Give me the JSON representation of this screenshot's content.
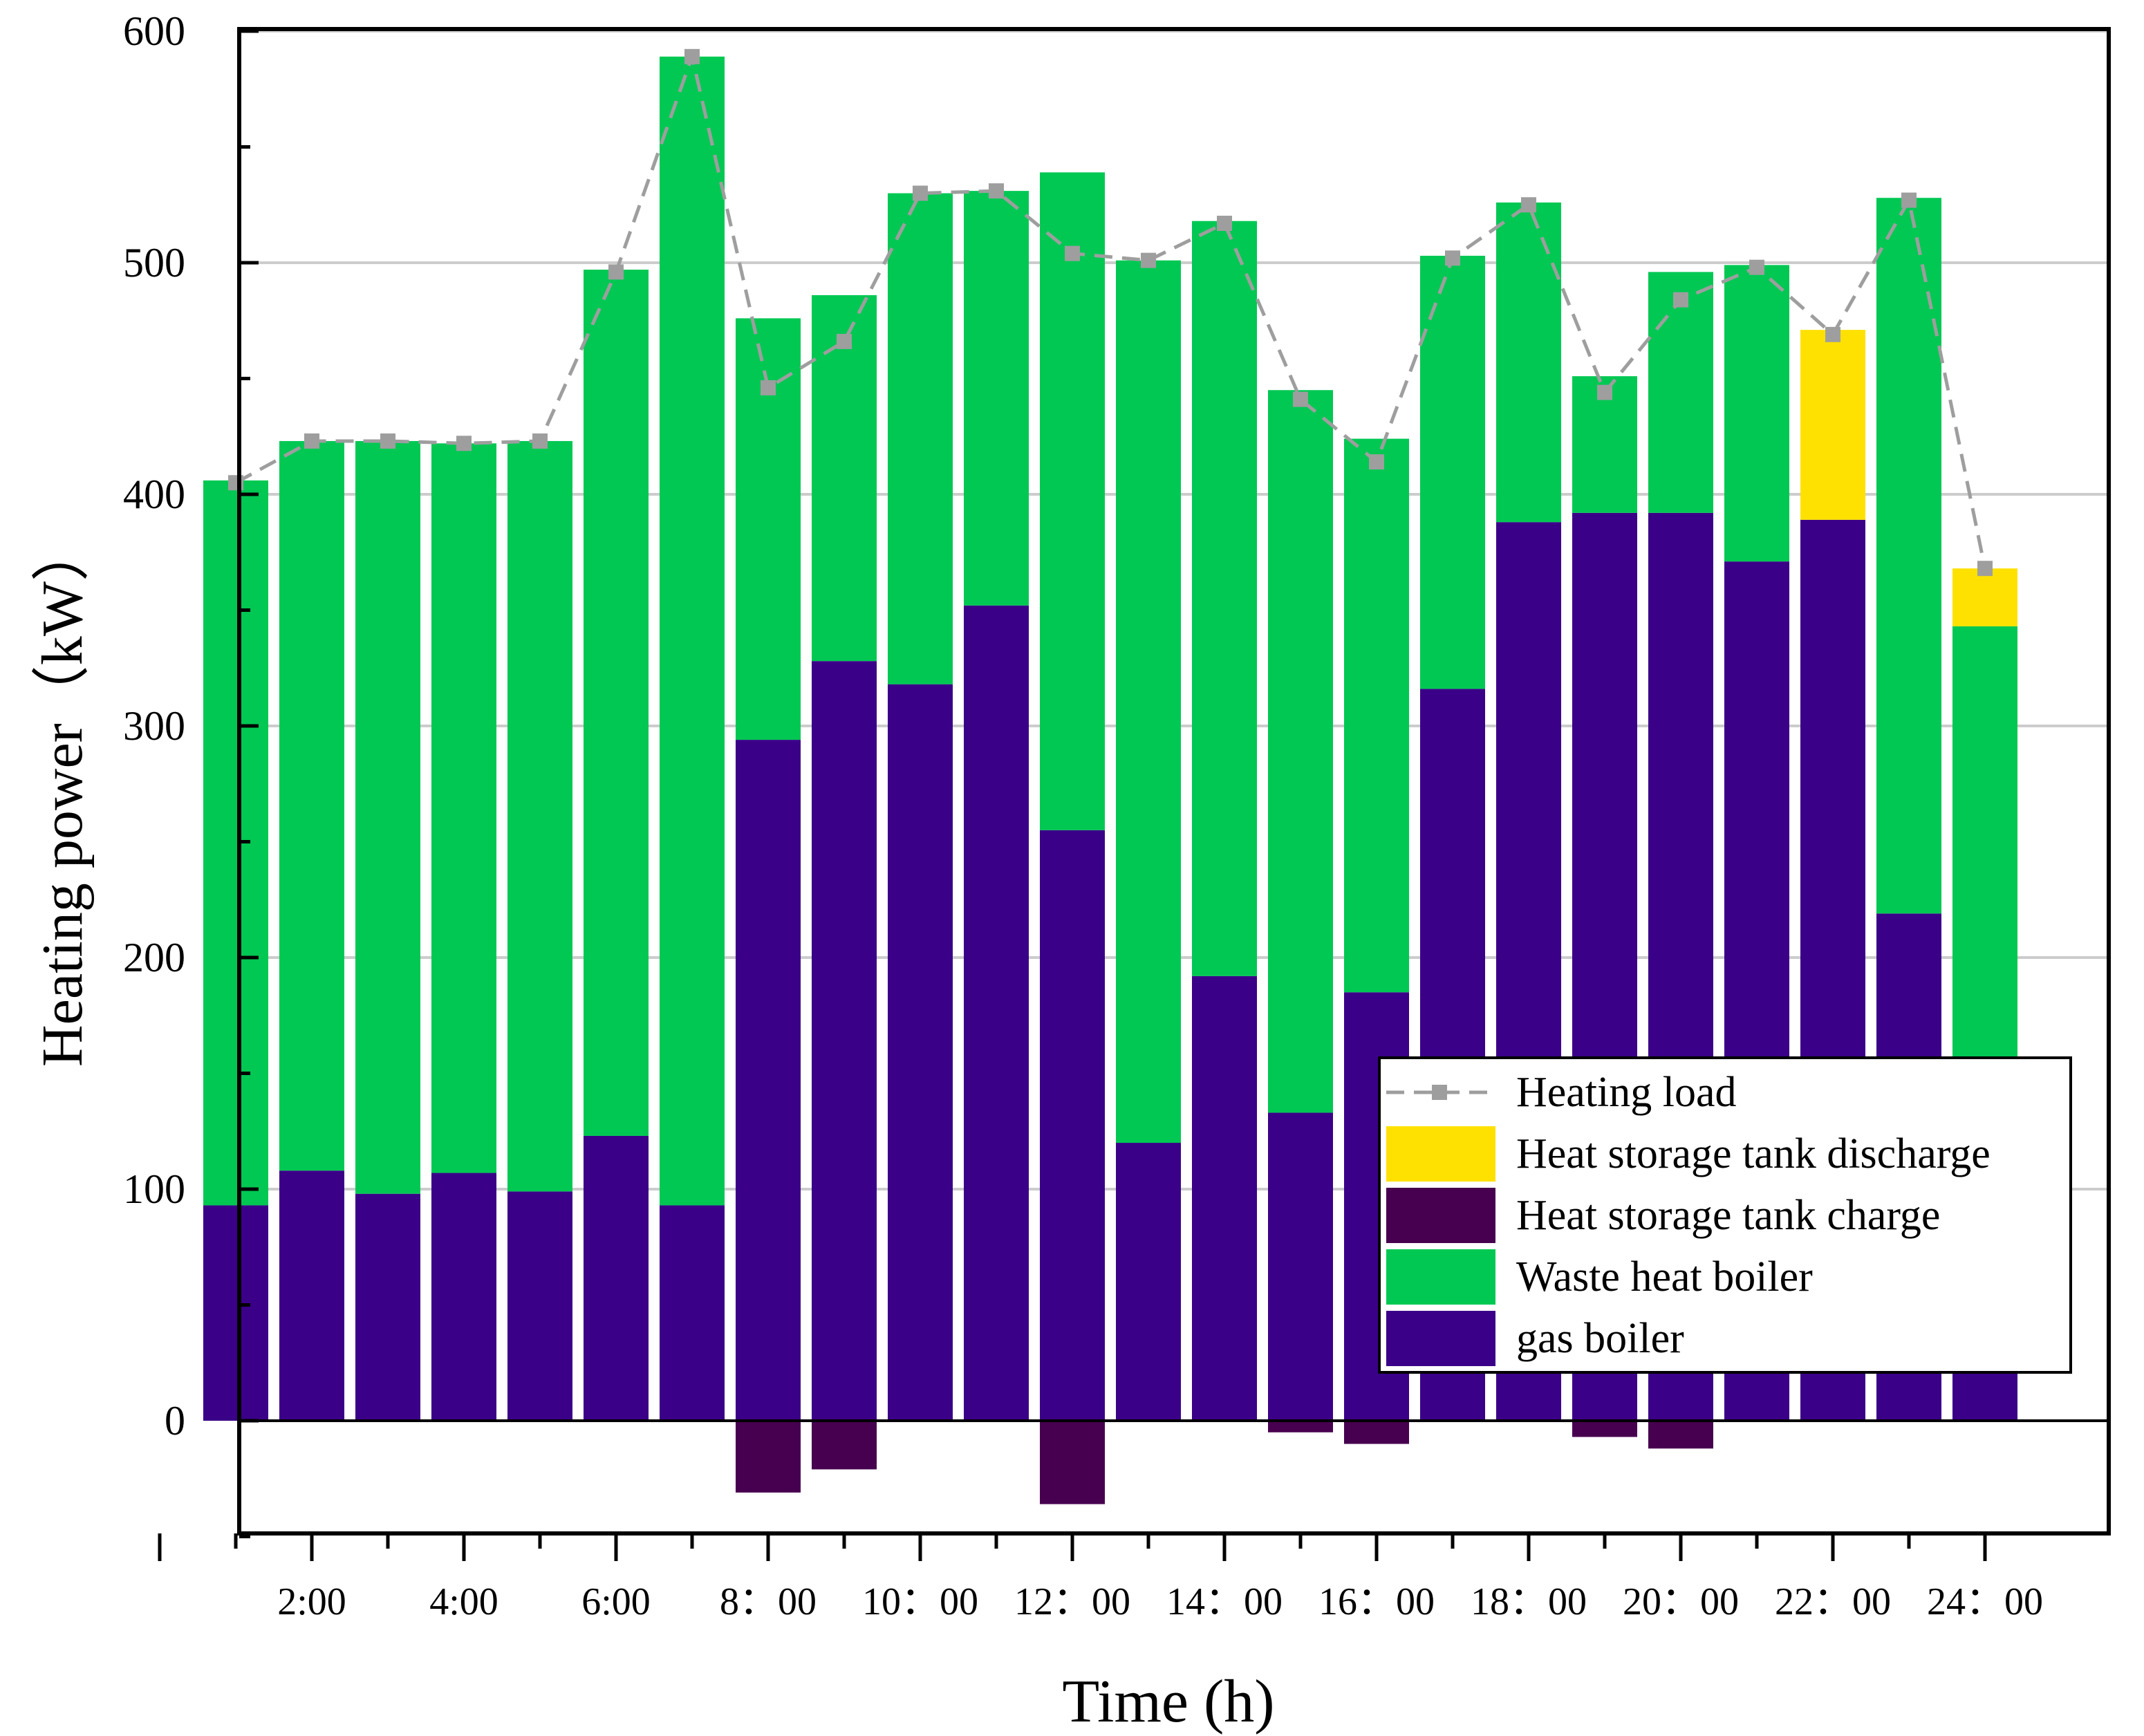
{
  "chart_data": {
    "type": "bar",
    "stacked": true,
    "title": "",
    "xlabel": "Time (h)",
    "ylabel": "Heating power（kW）",
    "ylim": [
      -50,
      600
    ],
    "yticks": [
      0,
      100,
      200,
      300,
      400,
      500,
      600
    ],
    "grid": "horizontal",
    "legend_position": "lower-right",
    "x": [
      1,
      2,
      3,
      4,
      5,
      6,
      7,
      8,
      9,
      10,
      11,
      12,
      13,
      14,
      15,
      16,
      17,
      18,
      19,
      20,
      21,
      22,
      23,
      24
    ],
    "xtick_positions": [
      2,
      4,
      6,
      8,
      10,
      12,
      14,
      16,
      18,
      20,
      22,
      24
    ],
    "xtick_labels": [
      "2:00",
      "4:00",
      "6:00",
      "8：00",
      "10：00",
      "12：00",
      "14：00",
      "16：00",
      "18：00",
      "20：00",
      "22：00",
      "24：00"
    ],
    "series": [
      {
        "name": "gas boiler",
        "kind": "bar",
        "color": "#3A0088",
        "values": [
          93,
          108,
          98,
          107,
          99,
          123,
          93,
          294,
          328,
          318,
          352,
          255,
          120,
          192,
          133,
          185,
          316,
          388,
          392,
          392,
          371,
          389,
          219,
          121
        ]
      },
      {
        "name": "Waste heat boiler",
        "kind": "bar",
        "color": "#00C853",
        "values": [
          313,
          315,
          325,
          315,
          324,
          374,
          496,
          182,
          158,
          212,
          179,
          284,
          381,
          326,
          312,
          239,
          187,
          138,
          59,
          104,
          128,
          0,
          309,
          222
        ]
      },
      {
        "name": "Heat storage tank discharge",
        "kind": "bar",
        "color": "#FFE100",
        "values": [
          0,
          0,
          0,
          0,
          0,
          0,
          0,
          0,
          0,
          0,
          0,
          0,
          0,
          0,
          0,
          0,
          0,
          0,
          0,
          0,
          0,
          82,
          0,
          25
        ]
      },
      {
        "name": "Heat storage tank charge",
        "kind": "bar",
        "color": "#47004F",
        "values": [
          0,
          0,
          0,
          0,
          0,
          0,
          0,
          -31,
          -21,
          0,
          0,
          -36,
          0,
          0,
          -5,
          -10,
          0,
          0,
          -7,
          -12,
          0,
          0,
          0,
          0
        ]
      },
      {
        "name": "Heating load",
        "kind": "line",
        "color": "#9E9E9E",
        "values": [
          405,
          423,
          423,
          422,
          423,
          496,
          589,
          446,
          466,
          530,
          531,
          504,
          501,
          517,
          441,
          414,
          502,
          525,
          444,
          484,
          498,
          469,
          527,
          368
        ]
      }
    ],
    "legend_order": [
      "Heating load",
      "Heat storage tank discharge",
      "Heat storage tank charge",
      "Waste heat boiler",
      "gas boiler"
    ]
  }
}
